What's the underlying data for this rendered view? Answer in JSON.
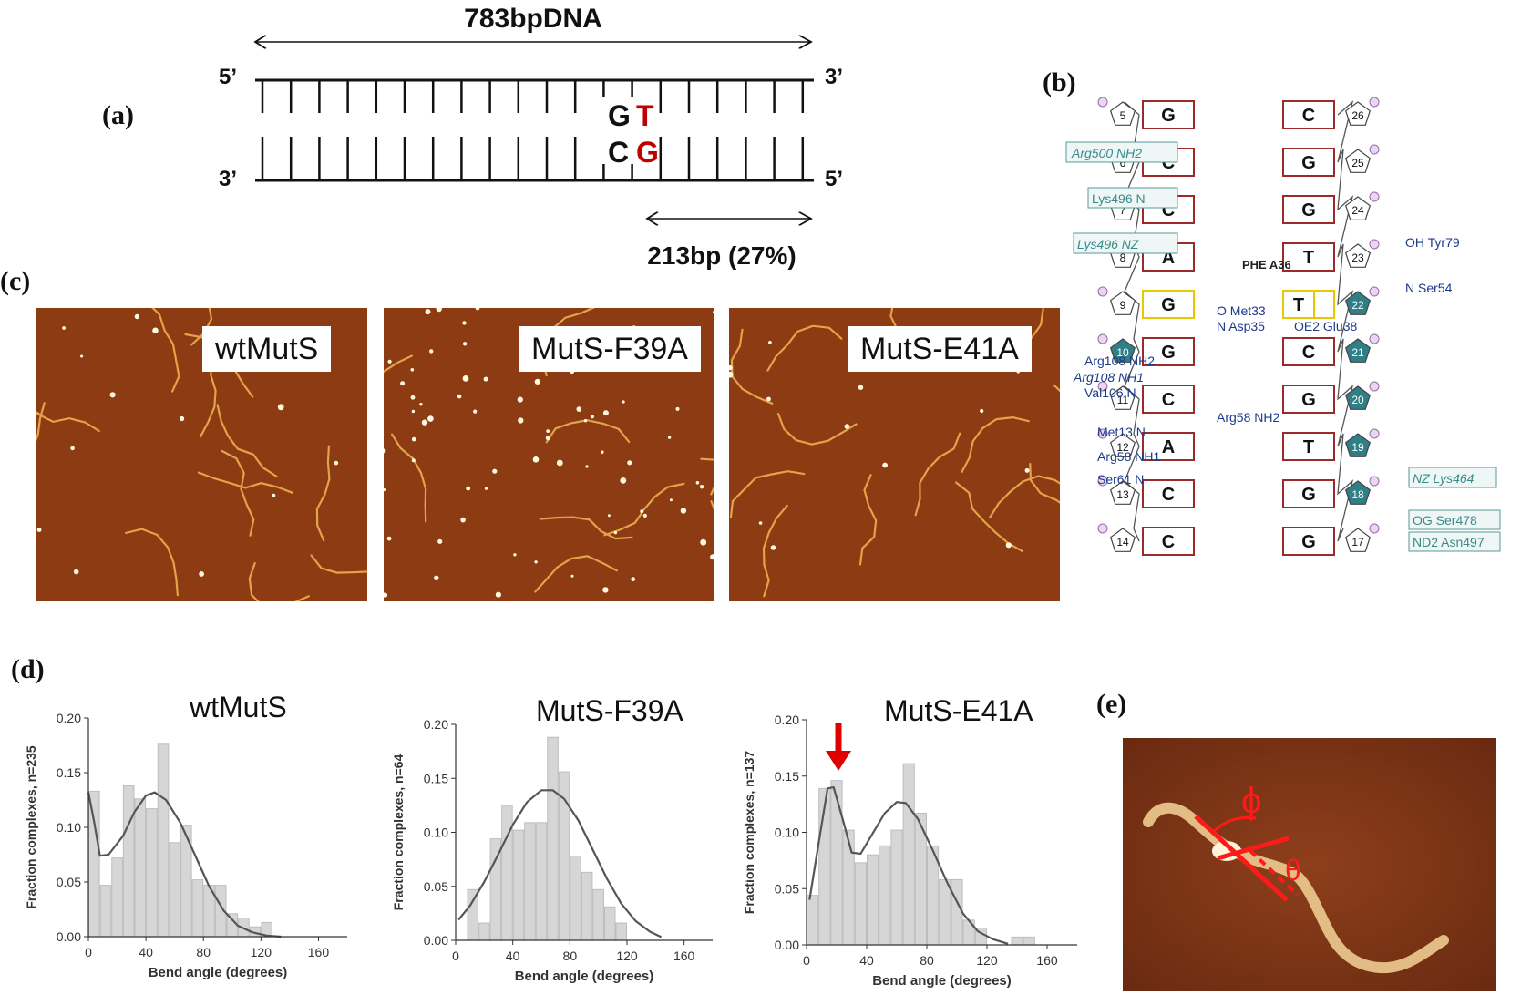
{
  "panels": {
    "a": "(a)",
    "b": "(b)",
    "c": "(c)",
    "d": "(d)",
    "e": "(e)"
  },
  "panel_a": {
    "length_label": "783bpDNA",
    "top_left": "5’",
    "top_right": "3’",
    "bottom_left": "3’",
    "bottom_right": "5’",
    "top_base_1": "G",
    "top_base_2": "T",
    "bottom_base_1": "C",
    "bottom_base_2": "G",
    "position_label": "213bp (27%)",
    "mismatch_color": "#c00000"
  },
  "panel_b": {
    "rows": [
      {
        "left_num": "5",
        "left_base": "G",
        "right_base": "C",
        "right_num": "26"
      },
      {
        "left_num": "6",
        "left_base": "C",
        "right_base": "G",
        "right_num": "25"
      },
      {
        "left_num": "7",
        "left_base": "C",
        "right_base": "G",
        "right_num": "24"
      },
      {
        "left_num": "8",
        "left_base": "A",
        "right_base": "T",
        "right_num": "23"
      },
      {
        "left_num": "9",
        "left_base": "G",
        "right_base": "T",
        "right_num": "22"
      },
      {
        "left_num": "10",
        "left_base": "G",
        "right_base": "C",
        "right_num": "21"
      },
      {
        "left_num": "11",
        "left_base": "C",
        "right_base": "G",
        "right_num": "20"
      },
      {
        "left_num": "12",
        "left_base": "A",
        "right_base": "T",
        "right_num": "19"
      },
      {
        "left_num": "13",
        "left_base": "C",
        "right_base": "G",
        "right_num": "18"
      },
      {
        "left_num": "14",
        "left_base": "C",
        "right_base": "G",
        "right_num": "17"
      }
    ],
    "labels": {
      "arg500": "Arg500 NH2",
      "lys496n": "Lys496 N",
      "lys496nz": "Lys496 NZ",
      "phe": "PHE A36",
      "met33": "O Met33",
      "asp35": "N Asp35",
      "glu38": "OE2 Glu38",
      "tyr79": "OH Tyr79",
      "ser54": "N Ser54",
      "arg108nh2": "Arg108 NH2",
      "arg108nh1": "Arg108 NH1",
      "val106": "Val106 N",
      "arg58nh2": "Arg58 NH2",
      "met13": "Met13 N",
      "arg58nh1": "Arg58 NH1",
      "ser61": "Ser61 N",
      "lys464": "NZ Lys464",
      "ser478": "OG Ser478",
      "asn497": "ND2 Asn497"
    }
  },
  "panel_c": {
    "images": [
      "wtMutS",
      "MutS-F39A",
      "MutS-E41A"
    ]
  },
  "chart_data": [
    {
      "type": "bar",
      "title": "wtMutS",
      "xlabel": "Bend angle (degrees)",
      "ylabel": "Fraction complexes, n=235",
      "xlim": [
        0,
        180
      ],
      "ylim": [
        0,
        0.2
      ],
      "xticks": [
        "0",
        "40",
        "80",
        "120",
        "160"
      ],
      "yticks": [
        "0.00",
        "0.05",
        "0.10",
        "0.15",
        "0.20"
      ],
      "bin_width": 8,
      "bins": [
        0,
        8,
        16,
        24,
        32,
        40,
        48,
        56,
        64,
        72,
        80,
        88,
        96,
        104,
        112,
        120
      ],
      "values": [
        0.133,
        0.047,
        0.072,
        0.138,
        0.126,
        0.117,
        0.176,
        0.086,
        0.102,
        0.052,
        0.047,
        0.047,
        0.021,
        0.017,
        0.009,
        0.013
      ],
      "fit": [
        [
          0,
          0.132
        ],
        [
          4,
          0.105
        ],
        [
          8,
          0.074
        ],
        [
          14,
          0.075
        ],
        [
          24,
          0.092
        ],
        [
          32,
          0.114
        ],
        [
          40,
          0.129
        ],
        [
          46,
          0.132
        ],
        [
          54,
          0.125
        ],
        [
          64,
          0.104
        ],
        [
          74,
          0.075
        ],
        [
          84,
          0.046
        ],
        [
          94,
          0.024
        ],
        [
          104,
          0.01
        ],
        [
          114,
          0.004
        ],
        [
          124,
          0.001
        ],
        [
          134,
          0.0
        ]
      ]
    },
    {
      "type": "bar",
      "title": "MutS-F39A",
      "xlabel": "Bend angle (degrees)",
      "ylabel": "Fraction complexes, n=64",
      "xlim": [
        0,
        180
      ],
      "ylim": [
        0,
        0.2
      ],
      "xticks": [
        "0",
        "40",
        "80",
        "120",
        "160"
      ],
      "yticks": [
        "0.00",
        "0.05",
        "0.10",
        "0.15",
        "0.20"
      ],
      "bin_width": 8,
      "bins": [
        8,
        16,
        24,
        32,
        40,
        48,
        56,
        64,
        72,
        80,
        88,
        96,
        104,
        112
      ],
      "values": [
        0.047,
        0.016,
        0.094,
        0.125,
        0.102,
        0.109,
        0.109,
        0.188,
        0.156,
        0.078,
        0.063,
        0.047,
        0.031,
        0.016
      ],
      "fit": [
        [
          2,
          0.019
        ],
        [
          10,
          0.032
        ],
        [
          20,
          0.054
        ],
        [
          30,
          0.08
        ],
        [
          40,
          0.107
        ],
        [
          50,
          0.128
        ],
        [
          60,
          0.139
        ],
        [
          68,
          0.139
        ],
        [
          76,
          0.131
        ],
        [
          86,
          0.111
        ],
        [
          96,
          0.084
        ],
        [
          106,
          0.057
        ],
        [
          116,
          0.034
        ],
        [
          126,
          0.018
        ],
        [
          136,
          0.008
        ],
        [
          144,
          0.003
        ]
      ]
    },
    {
      "type": "bar",
      "title": "MutS-E41A",
      "xlabel": "Bend angle (degrees)",
      "ylabel": "Fraction complexes, n=137",
      "xlim": [
        0,
        180
      ],
      "ylim": [
        0,
        0.2
      ],
      "xticks": [
        "0",
        "40",
        "80",
        "120",
        "160"
      ],
      "yticks": [
        "0.00",
        "0.05",
        "0.10",
        "0.15",
        "0.20"
      ],
      "bin_width": 8,
      "bins": [
        0,
        8,
        16,
        24,
        32,
        40,
        48,
        56,
        64,
        72,
        80,
        88,
        96,
        104,
        112,
        120,
        128,
        136,
        144
      ],
      "values": [
        0.044,
        0.139,
        0.146,
        0.102,
        0.073,
        0.08,
        0.088,
        0.102,
        0.161,
        0.117,
        0.088,
        0.058,
        0.058,
        0.022,
        0.015,
        0.0,
        0.0,
        0.007,
        0.007
      ],
      "fit": [
        [
          2,
          0.04
        ],
        [
          8,
          0.09
        ],
        [
          14,
          0.139
        ],
        [
          18,
          0.14
        ],
        [
          24,
          0.112
        ],
        [
          30,
          0.082
        ],
        [
          36,
          0.081
        ],
        [
          44,
          0.099
        ],
        [
          52,
          0.117
        ],
        [
          60,
          0.127
        ],
        [
          66,
          0.126
        ],
        [
          74,
          0.112
        ],
        [
          84,
          0.084
        ],
        [
          94,
          0.054
        ],
        [
          104,
          0.028
        ],
        [
          114,
          0.012
        ],
        [
          124,
          0.005
        ],
        [
          134,
          0.001
        ]
      ]
    }
  ],
  "panel_e": {
    "phi": "ϕ",
    "theta": "θ"
  }
}
